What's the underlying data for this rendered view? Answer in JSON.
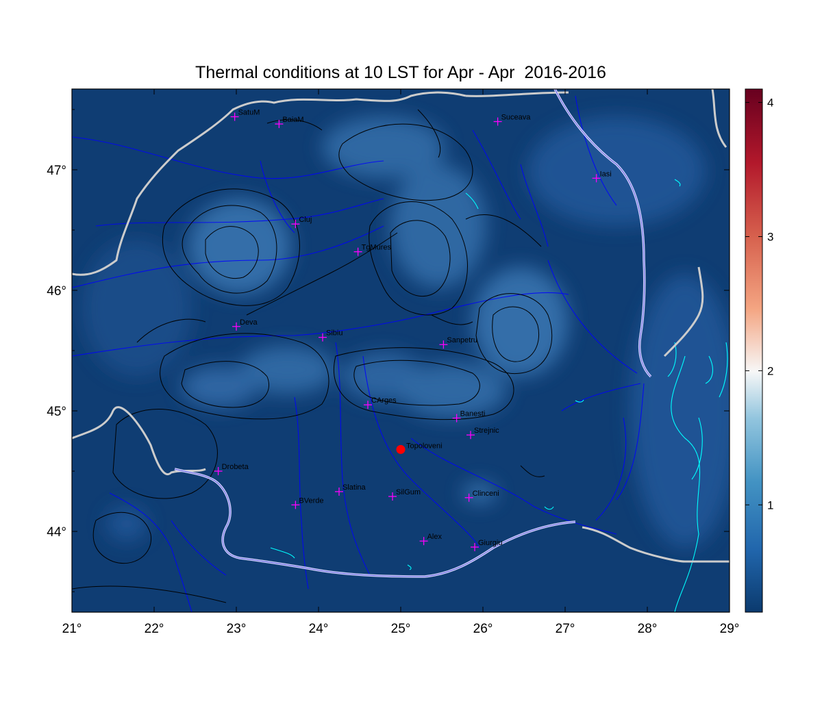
{
  "title": "Thermal conditions at 10 LST for Apr - Apr  2016-2016",
  "axes": {
    "x_ticks": [
      "21°",
      "22°",
      "23°",
      "24°",
      "25°",
      "26°",
      "27°",
      "28°",
      "29°"
    ],
    "y_ticks": [
      "47°",
      "46°",
      "45°",
      "44°"
    ],
    "lon_range": [
      21,
      29
    ],
    "lat_range": [
      43.33,
      47.67
    ]
  },
  "colorbar": {
    "range": [
      0.2,
      4.1
    ],
    "ticks": [
      "1",
      "2",
      "3",
      "4"
    ],
    "tick_values": [
      1,
      2,
      3,
      4
    ],
    "colors": [
      "#0b3a6e",
      "#2166ac",
      "#4393c3",
      "#92c5de",
      "#f7f7f7",
      "#f4a582",
      "#d6604d",
      "#b2182b",
      "#67001f"
    ]
  },
  "colors": {
    "background": "#0f3d73",
    "marker": "#ff00ff",
    "highlight": "#ff0000",
    "border": "#cccccc",
    "river": "#0000ff",
    "lake": "#00ffff",
    "contour": "#000000"
  },
  "stations": [
    {
      "name": "SatuM",
      "lon": 22.98,
      "lat": 47.44
    },
    {
      "name": "BaiaM",
      "lon": 23.52,
      "lat": 47.38
    },
    {
      "name": "Suceava",
      "lon": 26.18,
      "lat": 47.4
    },
    {
      "name": "Iasi",
      "lon": 27.38,
      "lat": 46.93
    },
    {
      "name": "Cluj",
      "lon": 23.72,
      "lat": 46.55
    },
    {
      "name": "TgMures",
      "lon": 24.48,
      "lat": 46.32
    },
    {
      "name": "Deva",
      "lon": 23.0,
      "lat": 45.7
    },
    {
      "name": "Sibiu",
      "lon": 24.05,
      "lat": 45.61
    },
    {
      "name": "Sanpetru",
      "lon": 25.52,
      "lat": 45.55
    },
    {
      "name": "CArges",
      "lon": 24.6,
      "lat": 45.05
    },
    {
      "name": "Banesti",
      "lon": 25.68,
      "lat": 44.94
    },
    {
      "name": "Strejnic",
      "lon": 25.85,
      "lat": 44.8
    },
    {
      "name": "Drobeta",
      "lon": 22.78,
      "lat": 44.5
    },
    {
      "name": "Slatina",
      "lon": 24.25,
      "lat": 44.33
    },
    {
      "name": "SilGum",
      "lon": 24.9,
      "lat": 44.29
    },
    {
      "name": "Clinceni",
      "lon": 25.83,
      "lat": 44.28
    },
    {
      "name": "BVerde",
      "lon": 23.72,
      "lat": 44.22
    },
    {
      "name": "Alex",
      "lon": 25.28,
      "lat": 43.92
    },
    {
      "name": "Giurgiu",
      "lon": 25.9,
      "lat": 43.87
    }
  ],
  "highlight_station": {
    "name": "Topoloveni",
    "lon": 25.0,
    "lat": 44.68
  }
}
